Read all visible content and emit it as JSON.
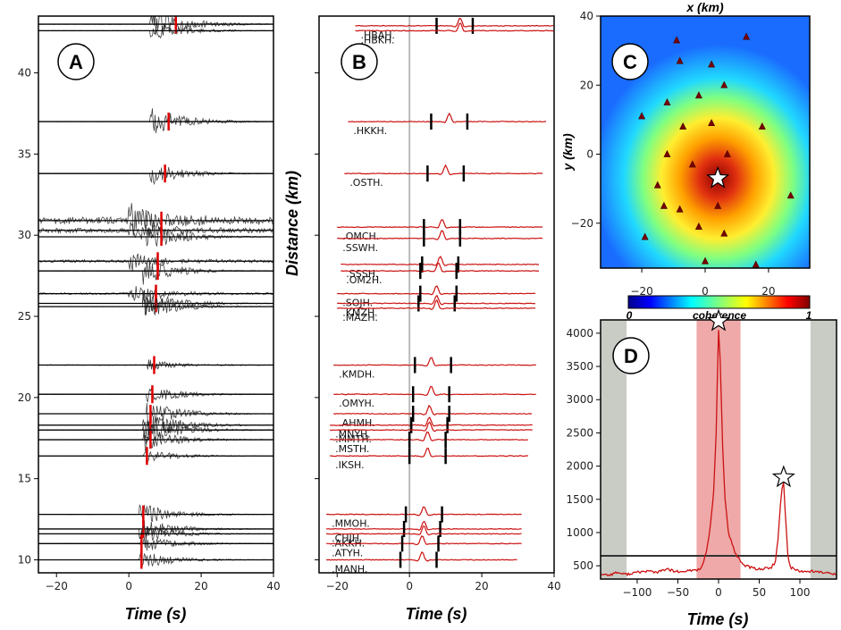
{
  "panels": {
    "A": {
      "badge": "A",
      "xlabel": "Time (s)"
    },
    "B": {
      "badge": "B",
      "xlabel": "Time (s)",
      "ylabel": "Distance (km)"
    },
    "C": {
      "badge": "C",
      "xlabel": "x (km)",
      "ylabel": "y (km)",
      "colorbar_label": "coherence",
      "colorbar_min": "0",
      "colorbar_max": "1"
    },
    "D": {
      "badge": "D",
      "xlabel": "Time (s)"
    }
  },
  "chart_data": [
    {
      "panel": "A",
      "type": "line",
      "title": "",
      "xlabel": "Time (s)",
      "ylabel": "",
      "xlim": [
        -25,
        40
      ],
      "ylim": [
        9.2,
        43.5
      ],
      "xticks": [
        -20,
        0,
        20,
        40
      ],
      "yticks": [
        10,
        15,
        20,
        25,
        30,
        35,
        40
      ],
      "traces": [
        {
          "distance": 43.0,
          "onset": 6,
          "amp": 0.9,
          "noise": 0.05,
          "pick": 13
        },
        {
          "distance": 42.6,
          "onset": 6,
          "amp": 0.5,
          "noise": 0.04,
          "pick": null
        },
        {
          "distance": 37.0,
          "onset": 6,
          "amp": 0.8,
          "noise": 0.03,
          "pick": 11
        },
        {
          "distance": 33.8,
          "onset": 6,
          "amp": 0.6,
          "noise": 0.03,
          "pick": 10
        },
        {
          "distance": 30.9,
          "onset": 0,
          "amp": 0.9,
          "noise": 0.9,
          "pick": 9
        },
        {
          "distance": 30.3,
          "onset": 0,
          "amp": 0.6,
          "noise": 0.6,
          "pick": null
        },
        {
          "distance": 29.9,
          "onset": 5,
          "amp": 0.8,
          "noise": 0.03,
          "pick": 9
        },
        {
          "distance": 28.4,
          "onset": 0,
          "amp": 0.5,
          "noise": 0.35,
          "pick": 8
        },
        {
          "distance": 27.8,
          "onset": 4,
          "amp": 0.7,
          "noise": 0.03,
          "pick": 8
        },
        {
          "distance": 26.4,
          "onset": 0,
          "amp": 0.5,
          "noise": 0.25,
          "pick": 7.5
        },
        {
          "distance": 25.8,
          "onset": 4,
          "amp": 0.7,
          "noise": 0.03,
          "pick": 7.5
        },
        {
          "distance": 25.6,
          "onset": 4,
          "amp": 0.7,
          "noise": 0.03,
          "pick": null
        },
        {
          "distance": 22.0,
          "onset": 5,
          "amp": 0.3,
          "noise": 0.08,
          "pick": 7
        },
        {
          "distance": 20.2,
          "onset": 5,
          "amp": 0.5,
          "noise": 0.03,
          "pick": 6.5
        },
        {
          "distance": 19.0,
          "onset": 5,
          "amp": 0.7,
          "noise": 0.03,
          "pick": 6
        },
        {
          "distance": 18.3,
          "onset": 4,
          "amp": 0.8,
          "noise": 0.04,
          "pick": 6
        },
        {
          "distance": 18.0,
          "onset": 4,
          "amp": 0.8,
          "noise": 0.04,
          "pick": null
        },
        {
          "distance": 17.4,
          "onset": 4,
          "amp": 0.6,
          "noise": 0.03,
          "pick": 6
        },
        {
          "distance": 16.4,
          "onset": 4,
          "amp": 0.4,
          "noise": 0.02,
          "pick": 5
        },
        {
          "distance": 12.8,
          "onset": 3,
          "amp": 0.6,
          "noise": 0.02,
          "pick": 4
        },
        {
          "distance": 11.9,
          "onset": 3,
          "amp": 0.6,
          "noise": 0.02,
          "pick": 4
        },
        {
          "distance": 11.6,
          "onset": 3,
          "amp": 0.5,
          "noise": 0.02,
          "pick": null
        },
        {
          "distance": 11.0,
          "onset": 3,
          "amp": 0.5,
          "noise": 0.02,
          "pick": 3.5
        },
        {
          "distance": 10.0,
          "onset": 3,
          "amp": 0.5,
          "noise": 0.02,
          "pick": 3.5
        }
      ]
    },
    {
      "panel": "B",
      "type": "line",
      "title": "",
      "xlabel": "Time (s)",
      "ylabel": "Distance (km)",
      "xlim": [
        -25,
        40
      ],
      "ylim": [
        9.2,
        43.5
      ],
      "xticks": [
        -20,
        0,
        20,
        40
      ],
      "zero_line": 0,
      "traces": [
        {
          "station": ".HBAH.",
          "distance": 42.9,
          "t0": -15,
          "t1": 40,
          "p": 14,
          "w1": 7.5,
          "w2": 17.5
        },
        {
          "station": ".HBKH.",
          "distance": 42.6,
          "t0": -15,
          "t1": 40,
          "p": 14,
          "w1": null,
          "w2": null
        },
        {
          "station": ".HKKH.",
          "distance": 37.0,
          "t0": -17,
          "t1": 38,
          "p": 11,
          "w1": 6,
          "w2": 16
        },
        {
          "station": ".OSTH.",
          "distance": 33.8,
          "t0": -18,
          "t1": 37,
          "p": 10,
          "w1": 5,
          "w2": 15
        },
        {
          "station": ".OMCH.",
          "distance": 30.5,
          "t0": -20,
          "t1": 37,
          "p": 9,
          "w1": 4,
          "w2": 14
        },
        {
          "station": ".SSWH.",
          "distance": 29.8,
          "t0": -20,
          "t1": 37,
          "p": 9,
          "w1": 4,
          "w2": 14
        },
        {
          "station": ".SSSH.",
          "distance": 28.2,
          "t0": -19,
          "t1": 36,
          "p": 8.5,
          "w1": 3.5,
          "w2": 13.5
        },
        {
          "station": ".OM2H.",
          "distance": 27.8,
          "t0": -19,
          "t1": 36,
          "p": 8,
          "w1": 3,
          "w2": 13
        },
        {
          "station": ".SOJH.",
          "distance": 26.4,
          "t0": -20,
          "t1": 35,
          "p": 7.5,
          "w1": 3,
          "w2": 13
        },
        {
          "station": ".KMZH.",
          "distance": 25.8,
          "t0": -20,
          "t1": 35,
          "p": 7.5,
          "w1": 2.5,
          "w2": 12.5
        },
        {
          "station": ".MAZH.",
          "distance": 25.5,
          "t0": -20,
          "t1": 35,
          "p": 7.5,
          "w1": null,
          "w2": null
        },
        {
          "station": ".KMDH.",
          "distance": 22.0,
          "t0": -21,
          "t1": 35,
          "p": 6,
          "w1": 1.5,
          "w2": 11.5
        },
        {
          "station": ".OMYH.",
          "distance": 20.2,
          "t0": -21,
          "t1": 35,
          "p": 6,
          "w1": 1,
          "w2": 11
        },
        {
          "station": ".AHMH.",
          "distance": 19.0,
          "t0": -21,
          "t1": 34,
          "p": 5.5,
          "w1": 1,
          "w2": 11
        },
        {
          "station": ".MNYH.",
          "distance": 18.3,
          "t0": -22,
          "t1": 34,
          "p": 5.5,
          "w1": 0.5,
          "w2": 10.5
        },
        {
          "station": ".MMTH.",
          "distance": 18.0,
          "t0": -22,
          "t1": 34,
          "p": 5.5,
          "w1": null,
          "w2": null
        },
        {
          "station": ".MSTH.",
          "distance": 17.4,
          "t0": -22,
          "t1": 33,
          "p": 5,
          "w1": 0,
          "w2": 10
        },
        {
          "station": ".IKSH.",
          "distance": 16.4,
          "t0": -22,
          "t1": 33,
          "p": 5,
          "w1": 0,
          "w2": 10
        },
        {
          "station": ".MMOH.",
          "distance": 12.8,
          "t0": -23,
          "t1": 31,
          "p": 4,
          "w1": -1,
          "w2": 9
        },
        {
          "station": ".CHJH.",
          "distance": 11.9,
          "t0": -23,
          "t1": 31,
          "p": 4,
          "w1": -1.5,
          "w2": 8.5
        },
        {
          "station": ".AKKH.",
          "distance": 11.6,
          "t0": -23,
          "t1": 31,
          "p": 4,
          "w1": null,
          "w2": null
        },
        {
          "station": ".ATYH.",
          "distance": 11.0,
          "t0": -23,
          "t1": 31,
          "p": 3.5,
          "w1": -2,
          "w2": 8
        },
        {
          "station": ".MANH.",
          "distance": 10.0,
          "t0": -23,
          "t1": 30,
          "p": 3.5,
          "w1": -2.5,
          "w2": 7.5
        }
      ]
    },
    {
      "panel": "C",
      "type": "heatmap",
      "title": "",
      "xlabel": "x (km)",
      "ylabel": "y (km)",
      "xlim": [
        -33,
        33
      ],
      "ylim": [
        -33,
        40
      ],
      "xticks": [
        -20,
        0,
        20
      ],
      "yticks": [
        -20,
        0,
        20,
        40
      ],
      "clim": [
        0,
        1
      ],
      "colorbar_ticks": [
        "0",
        "1"
      ],
      "peak": {
        "x": 4,
        "y": -7,
        "value": 1.0
      },
      "stations": [
        [
          -9,
          33
        ],
        [
          -8,
          27
        ],
        [
          2,
          26
        ],
        [
          13,
          34
        ],
        [
          -2,
          17
        ],
        [
          6,
          20
        ],
        [
          -12,
          15
        ],
        [
          -20,
          11
        ],
        [
          -7,
          8
        ],
        [
          2,
          9
        ],
        [
          18,
          8
        ],
        [
          -12,
          0
        ],
        [
          -4,
          -3
        ],
        [
          7,
          0
        ],
        [
          -15,
          -9
        ],
        [
          -13,
          -15
        ],
        [
          -8,
          -16
        ],
        [
          4,
          -15
        ],
        [
          -2,
          -21
        ],
        [
          6,
          -23
        ],
        [
          -19,
          -24
        ],
        [
          27,
          -12
        ],
        [
          0,
          -31
        ],
        [
          16,
          -32
        ]
      ],
      "star": {
        "x": 4,
        "y": -7
      }
    },
    {
      "panel": "D",
      "type": "line",
      "title": "",
      "xlabel": "Time (s)",
      "ylabel": "",
      "xlim": [
        -145,
        145
      ],
      "ylim": [
        300,
        4200
      ],
      "xticks": [
        -100,
        -50,
        0,
        50,
        100
      ],
      "yticks": [
        500,
        1000,
        1500,
        2000,
        2500,
        3000,
        3500,
        4000
      ],
      "threshold": 650,
      "shaded_gray": [
        [
          -145,
          -113
        ],
        [
          113,
          145
        ]
      ],
      "shaded_red": [
        [
          -27,
          27
        ]
      ],
      "peaks": [
        {
          "t": 0,
          "value": 4100
        },
        {
          "t": 80,
          "value": 1750
        }
      ],
      "series": [
        {
          "name": "stack",
          "x": [
            -145,
            -135,
            -125,
            -115,
            -105,
            -95,
            -85,
            -75,
            -65,
            -55,
            -45,
            -35,
            -25,
            -20,
            -15,
            -10,
            -6,
            -3,
            0,
            2,
            5,
            8,
            12,
            20,
            30,
            40,
            50,
            60,
            65,
            70,
            73,
            76,
            78,
            80,
            82,
            85,
            88,
            95,
            105,
            115,
            125,
            135,
            145
          ],
          "y": [
            380,
            360,
            400,
            370,
            390,
            410,
            420,
            400,
            450,
            420,
            400,
            430,
            440,
            500,
            700,
            1100,
            1600,
            2500,
            4050,
            3600,
            2300,
            1500,
            1000,
            700,
            520,
            470,
            450,
            460,
            480,
            560,
            900,
            1400,
            1650,
            1750,
            1300,
            700,
            480,
            440,
            410,
            420,
            400,
            390,
            380
          ]
        }
      ]
    }
  ]
}
